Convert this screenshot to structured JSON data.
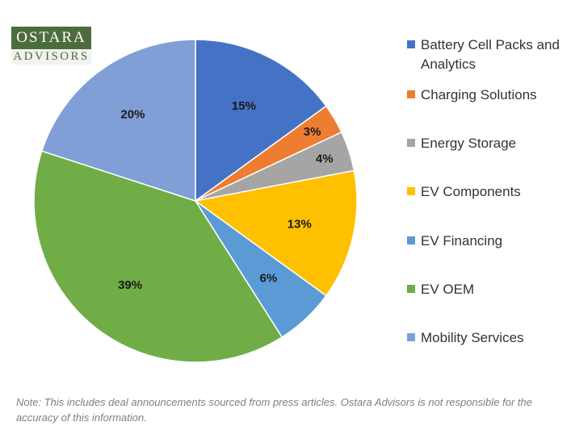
{
  "logo": {
    "line1": "OSTARA",
    "line2": "ADVISORS",
    "color": "#4d6c3e"
  },
  "chart_data": {
    "type": "pie",
    "slices": [
      {
        "name": "Battery Cell  Packs and Analytics",
        "value": 15,
        "label": "15%",
        "color": "#4472c4"
      },
      {
        "name": "Charging Solutions",
        "value": 3,
        "label": "3%",
        "color": "#ed7d31"
      },
      {
        "name": "Energy Storage",
        "value": 4,
        "label": "4%",
        "color": "#a5a5a5"
      },
      {
        "name": "EV Components",
        "value": 13,
        "label": "13%",
        "color": "#ffc000"
      },
      {
        "name": "EV Financing",
        "value": 6,
        "label": "6%",
        "color": "#5b9bd5"
      },
      {
        "name": "EV OEM",
        "value": 39,
        "label": "39%",
        "color": "#70ad47"
      },
      {
        "name": "Mobility Services",
        "value": 20,
        "label": "20%",
        "color": "#7f9fd6"
      }
    ],
    "legend_position": "right",
    "start_angle": "top (12 o'clock), clockwise"
  },
  "legend": {
    "items": [
      {
        "label": "Battery Cell  Packs and Analytics",
        "color": "#4472c4"
      },
      {
        "label": "Charging Solutions",
        "color": "#ed7d31"
      },
      {
        "label": "Energy Storage",
        "color": "#a5a5a5"
      },
      {
        "label": "EV Components",
        "color": "#ffc000"
      },
      {
        "label": "EV Financing",
        "color": "#5b9bd5"
      },
      {
        "label": "EV OEM",
        "color": "#70ad47"
      },
      {
        "label": "Mobility Services",
        "color": "#7f9fd6"
      }
    ]
  },
  "note": "Note: This includes deal announcements sourced from press articles. Ostara Advisors is not responsible for the accuracy of this information."
}
